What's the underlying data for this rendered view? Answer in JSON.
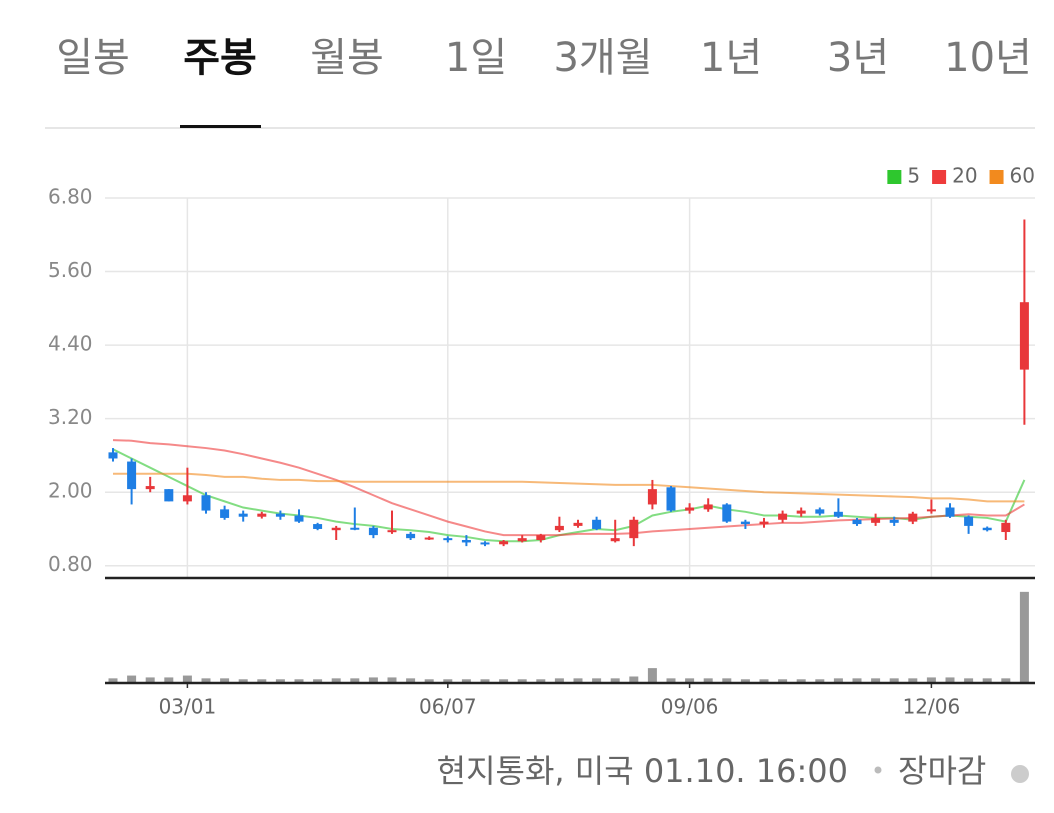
{
  "tabs": [
    "일봉",
    "주봉",
    "월봉",
    "1일",
    "3개월",
    "1년",
    "3년",
    "10년"
  ],
  "active_tab": 1,
  "chart_data": {
    "type": "candlestick",
    "categories": [
      null,
      null,
      null,
      null,
      "03/01",
      null,
      null,
      null,
      null,
      null,
      null,
      null,
      null,
      null,
      null,
      null,
      null,
      null,
      "06/07",
      null,
      null,
      null,
      null,
      null,
      null,
      null,
      null,
      null,
      null,
      null,
      null,
      "09/06",
      null,
      null,
      null,
      null,
      null,
      null,
      null,
      null,
      null,
      null,
      null,
      null,
      "12/06",
      null,
      null,
      null,
      null,
      null
    ],
    "open": [
      2.65,
      2.5,
      2.05,
      2.05,
      1.85,
      1.95,
      1.72,
      1.65,
      1.6,
      1.65,
      1.62,
      1.48,
      1.38,
      1.42,
      1.42,
      1.35,
      1.32,
      1.24,
      1.25,
      1.22,
      1.18,
      1.15,
      1.2,
      1.22,
      1.38,
      1.45,
      1.55,
      1.2,
      1.25,
      1.8,
      2.08,
      1.7,
      1.72,
      1.8,
      1.52,
      1.48,
      1.55,
      1.65,
      1.72,
      1.68,
      1.55,
      1.5,
      1.55,
      1.52,
      1.7,
      1.75,
      1.6,
      1.42,
      1.35,
      4.0
    ],
    "high": [
      2.72,
      2.55,
      2.25,
      2.05,
      2.4,
      2.0,
      1.78,
      1.7,
      1.68,
      1.7,
      1.72,
      1.5,
      1.45,
      1.75,
      1.45,
      1.7,
      1.35,
      1.28,
      1.28,
      1.3,
      1.2,
      1.22,
      1.3,
      1.32,
      1.6,
      1.55,
      1.6,
      1.55,
      1.6,
      2.2,
      2.1,
      1.82,
      1.9,
      1.82,
      1.55,
      1.58,
      1.7,
      1.75,
      1.75,
      1.9,
      1.58,
      1.65,
      1.6,
      1.68,
      1.88,
      1.82,
      1.62,
      1.44,
      1.55,
      6.45
    ],
    "low": [
      2.5,
      1.8,
      2.0,
      1.85,
      1.8,
      1.65,
      1.55,
      1.52,
      1.57,
      1.55,
      1.5,
      1.38,
      1.22,
      1.38,
      1.25,
      1.32,
      1.22,
      1.22,
      1.18,
      1.12,
      1.12,
      1.12,
      1.18,
      1.18,
      1.35,
      1.42,
      1.38,
      1.18,
      1.12,
      1.72,
      1.68,
      1.65,
      1.68,
      1.5,
      1.4,
      1.42,
      1.5,
      1.6,
      1.62,
      1.58,
      1.45,
      1.45,
      1.45,
      1.48,
      1.65,
      1.58,
      1.32,
      1.36,
      1.22,
      3.1
    ],
    "close": [
      2.55,
      2.05,
      2.1,
      1.85,
      1.95,
      1.7,
      1.58,
      1.6,
      1.65,
      1.6,
      1.52,
      1.4,
      1.42,
      1.4,
      1.3,
      1.38,
      1.25,
      1.26,
      1.22,
      1.18,
      1.15,
      1.2,
      1.25,
      1.3,
      1.45,
      1.5,
      1.4,
      1.25,
      1.55,
      2.05,
      1.7,
      1.75,
      1.8,
      1.52,
      1.48,
      1.52,
      1.65,
      1.7,
      1.65,
      1.6,
      1.48,
      1.58,
      1.5,
      1.65,
      1.72,
      1.6,
      1.45,
      1.38,
      1.5,
      5.1
    ],
    "up_color": "#e8373a",
    "down_color": "#1e7ee4",
    "ylim": [
      0.6,
      6.8
    ],
    "yticks": [
      {
        "value": 0.8,
        "label": "0.80"
      },
      {
        "value": 2,
        "label": "2.00"
      },
      {
        "value": 3.2,
        "label": "3.20"
      },
      {
        "value": 4.4,
        "label": "4.40"
      },
      {
        "value": 5.6,
        "label": "5.60"
      },
      {
        "value": 6.8,
        "label": "6.80"
      }
    ],
    "grid": true,
    "legend": "top-right",
    "moving_averages": [
      {
        "name": "5",
        "color": "#2ec72e",
        "values": [
          2.7,
          2.55,
          2.4,
          2.25,
          2.1,
          1.95,
          1.85,
          1.75,
          1.7,
          1.65,
          1.62,
          1.58,
          1.52,
          1.48,
          1.45,
          1.4,
          1.38,
          1.35,
          1.3,
          1.27,
          1.22,
          1.2,
          1.2,
          1.22,
          1.3,
          1.35,
          1.4,
          1.38,
          1.45,
          1.62,
          1.68,
          1.72,
          1.78,
          1.72,
          1.68,
          1.62,
          1.62,
          1.6,
          1.6,
          1.62,
          1.6,
          1.58,
          1.58,
          1.55,
          1.6,
          1.62,
          1.6,
          1.58,
          1.52,
          2.2
        ]
      },
      {
        "name": "20",
        "color": "#ee3b3b",
        "values": [
          2.85,
          2.84,
          2.8,
          2.78,
          2.75,
          2.72,
          2.68,
          2.62,
          2.55,
          2.48,
          2.4,
          2.3,
          2.2,
          2.08,
          1.95,
          1.82,
          1.72,
          1.62,
          1.52,
          1.44,
          1.36,
          1.3,
          1.3,
          1.3,
          1.3,
          1.32,
          1.32,
          1.32,
          1.33,
          1.36,
          1.38,
          1.4,
          1.42,
          1.44,
          1.46,
          1.48,
          1.5,
          1.5,
          1.52,
          1.54,
          1.55,
          1.56,
          1.57,
          1.58,
          1.6,
          1.62,
          1.64,
          1.62,
          1.62,
          1.8
        ]
      },
      {
        "name": "60",
        "color": "#f28a1e",
        "values": [
          2.3,
          2.3,
          2.3,
          2.3,
          2.3,
          2.28,
          2.25,
          2.25,
          2.22,
          2.2,
          2.2,
          2.18,
          2.18,
          2.17,
          2.17,
          2.17,
          2.17,
          2.17,
          2.17,
          2.17,
          2.17,
          2.17,
          2.17,
          2.16,
          2.15,
          2.14,
          2.13,
          2.12,
          2.12,
          2.12,
          2.1,
          2.08,
          2.06,
          2.04,
          2.02,
          2.0,
          1.99,
          1.98,
          1.97,
          1.96,
          1.95,
          1.94,
          1.93,
          1.92,
          1.9,
          1.9,
          1.88,
          1.85,
          1.85,
          1.85
        ]
      }
    ],
    "volume": {
      "color": "#999999",
      "ylim": [
        0,
        100
      ],
      "values": [
        5,
        8,
        6,
        6,
        8,
        5,
        5,
        4,
        4,
        4,
        4,
        4,
        5,
        5,
        6,
        6,
        5,
        4,
        4,
        4,
        4,
        4,
        4,
        4,
        5,
        5,
        5,
        5,
        7,
        16,
        5,
        5,
        5,
        5,
        4,
        4,
        4,
        4,
        4,
        5,
        5,
        5,
        5,
        5,
        6,
        6,
        5,
        5,
        5,
        98
      ]
    }
  },
  "footer": {
    "text": "현지통화, 미국 01.10. 16:00",
    "status": "장마감"
  }
}
